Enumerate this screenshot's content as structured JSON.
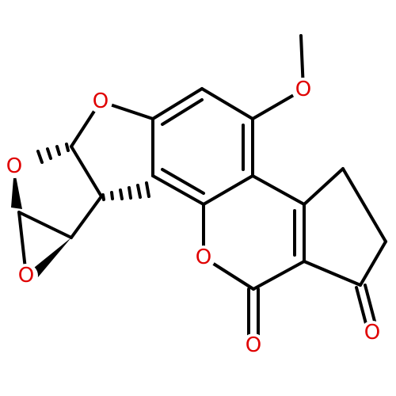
{
  "atoms": [
    "O",
    "O",
    "O",
    "O",
    "O",
    "O",
    "O"
  ]
}
